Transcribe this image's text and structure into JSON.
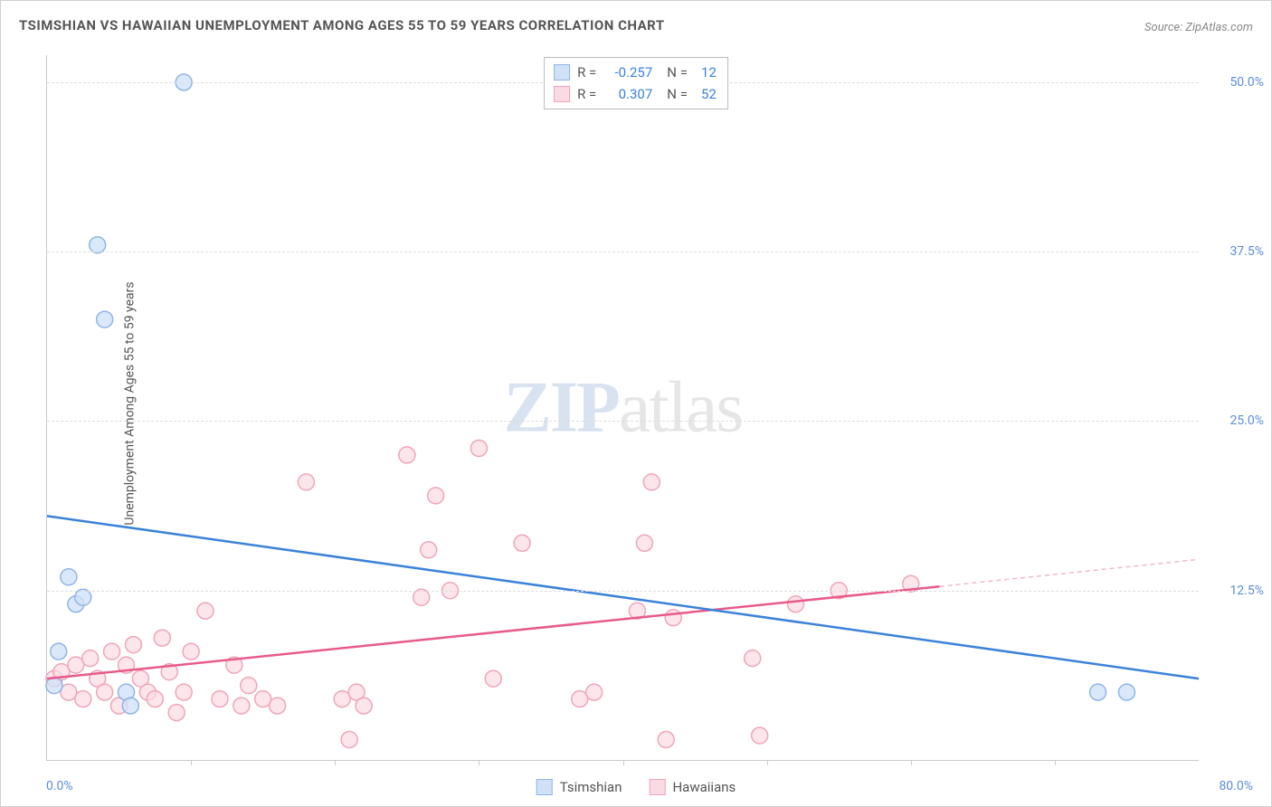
{
  "title": "TSIMSHIAN VS HAWAIIAN UNEMPLOYMENT AMONG AGES 55 TO 59 YEARS CORRELATION CHART",
  "source": "Source: ZipAtlas.com",
  "y_axis_label": "Unemployment Among Ages 55 to 59 years",
  "watermark_zip": "ZIP",
  "watermark_atlas": "atlas",
  "chart": {
    "type": "scatter",
    "xlim": [
      0,
      80
    ],
    "ylim": [
      0,
      52
    ],
    "y_ticks": [
      12.5,
      25.0,
      37.5,
      50.0
    ],
    "y_tick_labels": [
      "12.5%",
      "25.0%",
      "37.5%",
      "50.0%"
    ],
    "y_tick_color": "#5b8dd6",
    "x_tick_marks": [
      10,
      20,
      30,
      40,
      50,
      60,
      70
    ],
    "x_min_label": "0.0%",
    "x_max_label": "80.0%",
    "x_label_color": "#5b8dd6",
    "grid_color": "#dddddd",
    "axis_color": "#cccccc",
    "background_color": "#ffffff",
    "marker_radius": 9,
    "marker_stroke_width": 1.5,
    "line_width": 2.5
  },
  "series": {
    "tsimshian": {
      "label": "Tsimshian",
      "fill": "#cfe0f7",
      "stroke": "#8fb5e8",
      "line_color": "#3b82d9",
      "r_value": "-0.257",
      "n_value": "12",
      "points": [
        [
          0.5,
          5.5
        ],
        [
          0.8,
          8.0
        ],
        [
          1.5,
          13.5
        ],
        [
          2.0,
          11.5
        ],
        [
          2.5,
          12.0
        ],
        [
          3.5,
          38.0
        ],
        [
          4.0,
          32.5
        ],
        [
          5.5,
          5.0
        ],
        [
          5.8,
          4.0
        ],
        [
          9.5,
          50.0
        ],
        [
          73.0,
          5.0
        ],
        [
          75.0,
          5.0
        ]
      ],
      "trend": {
        "x1": 0,
        "y1": 18.0,
        "x2": 80,
        "y2": 6.0
      }
    },
    "hawaiians": {
      "label": "Hawaiians",
      "fill": "#fbdbe3",
      "stroke": "#f0a5b8",
      "line_color": "#e85a8a",
      "dashed_stroke": "#f5b8c8",
      "r_value": "0.307",
      "n_value": "52",
      "points": [
        [
          0.5,
          6.0
        ],
        [
          1.0,
          6.5
        ],
        [
          1.5,
          5.0
        ],
        [
          2.0,
          7.0
        ],
        [
          2.5,
          4.5
        ],
        [
          3.0,
          7.5
        ],
        [
          3.5,
          6.0
        ],
        [
          4.0,
          5.0
        ],
        [
          4.5,
          8.0
        ],
        [
          5.0,
          4.0
        ],
        [
          5.5,
          7.0
        ],
        [
          6.0,
          8.5
        ],
        [
          6.5,
          6.0
        ],
        [
          7.0,
          5.0
        ],
        [
          7.5,
          4.5
        ],
        [
          8.0,
          9.0
        ],
        [
          8.5,
          6.5
        ],
        [
          9.0,
          3.5
        ],
        [
          9.5,
          5.0
        ],
        [
          10.0,
          8.0
        ],
        [
          11.0,
          11.0
        ],
        [
          12.0,
          4.5
        ],
        [
          13.0,
          7.0
        ],
        [
          13.5,
          4.0
        ],
        [
          14.0,
          5.5
        ],
        [
          15.0,
          4.5
        ],
        [
          16.0,
          4.0
        ],
        [
          18.0,
          20.5
        ],
        [
          20.5,
          4.5
        ],
        [
          21.0,
          1.5
        ],
        [
          21.5,
          5.0
        ],
        [
          22.0,
          4.0
        ],
        [
          25.0,
          22.5
        ],
        [
          26.0,
          12.0
        ],
        [
          26.5,
          15.5
        ],
        [
          27.0,
          19.5
        ],
        [
          28.0,
          12.5
        ],
        [
          30.0,
          23.0
        ],
        [
          31.0,
          6.0
        ],
        [
          33.0,
          16.0
        ],
        [
          37.0,
          4.5
        ],
        [
          38.0,
          5.0
        ],
        [
          41.0,
          11.0
        ],
        [
          41.5,
          16.0
        ],
        [
          42.0,
          20.5
        ],
        [
          43.0,
          1.5
        ],
        [
          43.5,
          10.5
        ],
        [
          49.0,
          7.5
        ],
        [
          49.5,
          1.8
        ],
        [
          52.0,
          11.5
        ],
        [
          55.0,
          12.5
        ],
        [
          60.0,
          13.0
        ]
      ],
      "solid_trend": {
        "x1": 0,
        "y1": 6.0,
        "x2": 62,
        "y2": 12.8
      },
      "dashed_trend": {
        "x1": 62,
        "y1": 12.8,
        "x2": 80,
        "y2": 14.8
      }
    }
  },
  "legend_box": {
    "r_label": "R =",
    "n_label": "N ="
  }
}
